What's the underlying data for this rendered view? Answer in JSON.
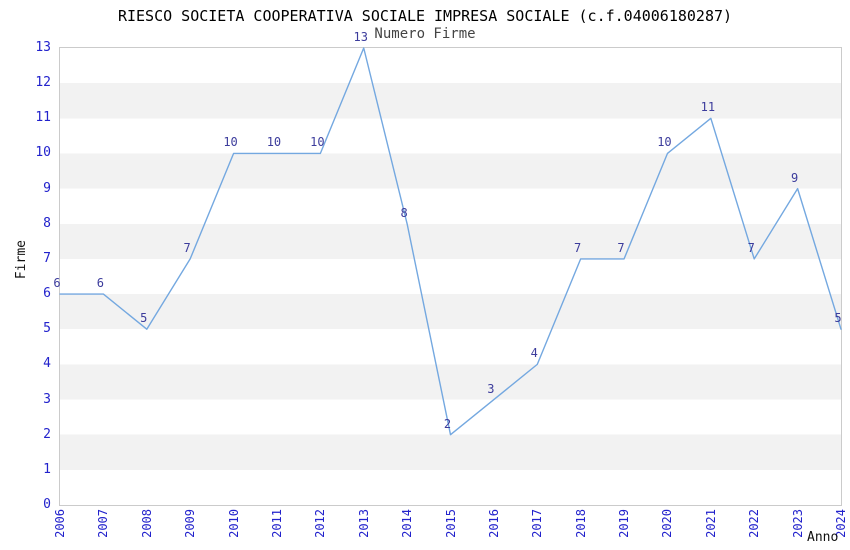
{
  "chart_data": {
    "type": "line",
    "title": "RIESCO SOCIETA COOPERATIVA SOCIALE IMPRESA SOCIALE (c.f.04006180287)",
    "subtitle": "Numero Firme",
    "xlabel": "Anno",
    "ylabel": "Firme",
    "categories": [
      "2006",
      "2007",
      "2008",
      "2009",
      "2010",
      "2011",
      "2012",
      "2013",
      "2014",
      "2015",
      "2016",
      "2017",
      "2018",
      "2019",
      "2020",
      "2021",
      "2022",
      "2023",
      "2024"
    ],
    "series": [
      {
        "name": "Numero Firme",
        "values": [
          6,
          6,
          5,
          7,
          10,
          10,
          10,
          13,
          8,
          2,
          3,
          4,
          7,
          7,
          10,
          11,
          7,
          9,
          5
        ]
      }
    ],
    "ylim": [
      0,
      13
    ],
    "yticks": [
      0,
      1,
      2,
      3,
      4,
      5,
      6,
      7,
      8,
      9,
      10,
      11,
      12,
      13
    ],
    "point_labels_visible": true,
    "legend": "none",
    "grid": "alternating horizontal unit bands",
    "colors": {
      "line": "#74a8e0",
      "tick_label": "#2222cc",
      "point_label": "#3c3c9c",
      "band_gray": "#f2f2f2",
      "band_white": "#ffffff",
      "frame": "#cbcbcb",
      "title": "#000000",
      "subtitle": "#444444",
      "axis_title": "#111111"
    }
  }
}
